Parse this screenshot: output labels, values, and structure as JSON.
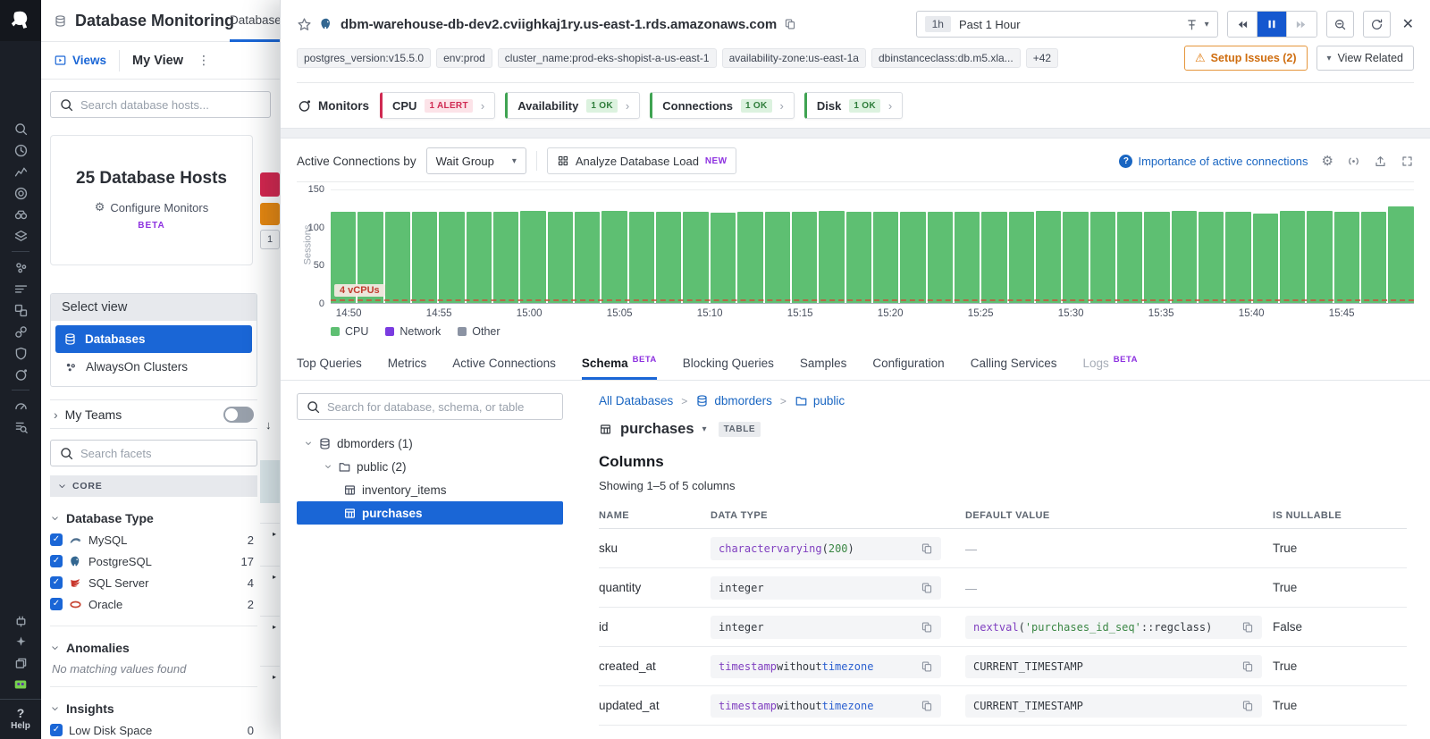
{
  "colors": {
    "accent_blue": "#1a66d6",
    "link_blue": "#1a66c2",
    "alert_red": "#cf2a52",
    "ok_green": "#2f7d3b",
    "warning_orange": "#cf6d0f",
    "bar_green": "#5ebf72",
    "network_purple": "#7a3be0",
    "other_gray": "#8b93a3",
    "beta_purple": "#8d31e0"
  },
  "icons": {
    "kebab": "⋮",
    "caret_down": "▾",
    "chevron_right": "›",
    "warning": "⚠",
    "close": "✕",
    "gear": "⚙",
    "sort_down": "↓",
    "check": "✓",
    "help": "?",
    "dash": "—"
  },
  "nav_rail": {
    "logo": "datadog-logo",
    "groups": [
      [
        "search",
        "events",
        "metrics",
        "monitors",
        "watchdog",
        "software-catalog"
      ],
      [
        "infrastructure",
        "log-pipelines",
        "dashboards",
        "apm-services",
        "security",
        "synthetics"
      ],
      [
        "performance",
        "log-explorer"
      ]
    ],
    "bottom": [
      "integrations",
      "bits-ai",
      "workspaces",
      "datadog-mascot"
    ],
    "help_label": "Help"
  },
  "underpage": {
    "app_title": "Database Monitoring",
    "nav_tab": "Databases",
    "views_label": "Views",
    "my_view_label": "My View",
    "search_placeholder": "Search database hosts...",
    "card": {
      "title": "25 Database Hosts",
      "configure_label": "Configure Monitors",
      "beta_label": "BETA"
    },
    "peek": {
      "page_number": "1"
    },
    "select_view": {
      "header": "Select view",
      "items": [
        {
          "label": "Databases",
          "icon": "database",
          "active": true
        },
        {
          "label": "AlwaysOn Clusters",
          "icon": "cluster",
          "active": false
        }
      ]
    },
    "my_teams_label": "My Teams",
    "facet_search_placeholder": "Search facets",
    "core_label": "CORE",
    "facets": [
      {
        "title": "Database Type",
        "items": [
          {
            "label": "MySQL",
            "icon": "mysql",
            "count": "2",
            "checked": true
          },
          {
            "label": "PostgreSQL",
            "icon": "postgresql",
            "count": "17",
            "checked": true
          },
          {
            "label": "SQL Server",
            "icon": "sqlserver",
            "count": "4",
            "checked": true
          },
          {
            "label": "Oracle",
            "icon": "oracle",
            "count": "2",
            "checked": true
          }
        ]
      },
      {
        "title": "Anomalies",
        "empty_text": "No matching values found",
        "items": []
      },
      {
        "title": "Insights",
        "items": [
          {
            "label": "Low Disk Space",
            "icon": null,
            "count": "0",
            "checked": true
          }
        ]
      }
    ]
  },
  "panel": {
    "host": "dbm-warehouse-db-dev2.cviighkaj1ry.us-east-1.rds.amazonaws.com",
    "time": {
      "range_short": "1h",
      "range_label": "Past 1 Hour"
    },
    "setup_issues_label": "Setup Issues (2)",
    "view_related_label": "View Related",
    "tags": [
      "postgres_version:v15.5.0",
      "env:prod",
      "cluster_name:prod-eks-shopist-a-us-east-1",
      "availability-zone:us-east-1a",
      "dbinstanceclass:db.m5.xla...",
      "+42"
    ],
    "monitors": {
      "label": "Monitors",
      "pills": [
        {
          "name": "CPU",
          "status": "1 ALERT",
          "state": "alert"
        },
        {
          "name": "Availability",
          "status": "1 OK",
          "state": "ok"
        },
        {
          "name": "Connections",
          "status": "1 OK",
          "state": "ok"
        },
        {
          "name": "Disk",
          "status": "1 OK",
          "state": "ok"
        }
      ]
    },
    "chart_controls": {
      "label": "Active Connections by",
      "selected": "Wait Group",
      "analyze_label": "Analyze Database Load",
      "new_badge": "NEW",
      "help_link": "Importance of active connections"
    },
    "tabs": [
      {
        "label": "Top Queries"
      },
      {
        "label": "Metrics"
      },
      {
        "label": "Active Connections"
      },
      {
        "label": "Schema",
        "beta": true,
        "active": true
      },
      {
        "label": "Blocking Queries"
      },
      {
        "label": "Samples"
      },
      {
        "label": "Configuration"
      },
      {
        "label": "Calling Services"
      },
      {
        "label": "Logs",
        "beta": true,
        "disabled": true
      }
    ],
    "schema": {
      "search_placeholder": "Search for database, schema, or table",
      "tree": [
        {
          "label": "dbmorders (1)",
          "icon": "database",
          "caret": true,
          "indent": 0
        },
        {
          "label": "public (2)",
          "icon": "folder",
          "caret": true,
          "indent": 1
        },
        {
          "label": "inventory_items",
          "icon": "table",
          "indent": 2
        },
        {
          "label": "purchases",
          "icon": "table",
          "indent": 2,
          "selected": true
        }
      ],
      "breadcrumb": [
        {
          "label": "All Databases"
        },
        {
          "label": "dbmorders",
          "icon": "database"
        },
        {
          "label": "public",
          "icon": "folder"
        }
      ],
      "entity": {
        "name": "purchases",
        "badge": "TABLE"
      },
      "section_title": "Columns",
      "showing": "Showing 1–5 of 5 columns",
      "table": {
        "headers": [
          "NAME",
          "DATA TYPE",
          "DEFAULT VALUE",
          "IS NULLABLE"
        ],
        "rows": [
          {
            "name": "sku",
            "data_type": "character varying(200)",
            "default": "—",
            "default_code": false,
            "nullable": "True"
          },
          {
            "name": "quantity",
            "data_type": "integer",
            "default": "—",
            "default_code": false,
            "nullable": "True"
          },
          {
            "name": "id",
            "data_type": "integer",
            "default": "nextval('purchases_id_seq'::regclass)",
            "default_code": true,
            "nullable": "False"
          },
          {
            "name": "created_at",
            "data_type": "timestamp without time zone",
            "default": "CURRENT_TIMESTAMP",
            "default_code": true,
            "nullable": "True"
          },
          {
            "name": "updated_at",
            "data_type": "timestamp without time zone",
            "default": "CURRENT_TIMESTAMP",
            "default_code": true,
            "nullable": "True"
          }
        ]
      }
    }
  },
  "chart_data": {
    "type": "bar",
    "stacked": true,
    "title": "Active Connections by Wait Group",
    "ylabel": "Sessions",
    "ylim": [
      0,
      150
    ],
    "yticks": [
      0,
      50,
      100,
      150
    ],
    "x_range": [
      "14:49",
      "15:49"
    ],
    "x_ticks": [
      "14:50",
      "14:55",
      "15:00",
      "15:05",
      "15:10",
      "15:15",
      "15:20",
      "15:25",
      "15:30",
      "15:35",
      "15:40",
      "15:45"
    ],
    "series": [
      {
        "name": "CPU",
        "color": "#5ebf72",
        "values": [
          120,
          121,
          120,
          120,
          121,
          120,
          121,
          122,
          121,
          120,
          122,
          120,
          121,
          120,
          119,
          121,
          120,
          121,
          122,
          121,
          120,
          120,
          121,
          120,
          121,
          121,
          122,
          121,
          120,
          121,
          120,
          122,
          121,
          121,
          118,
          122,
          122,
          120,
          120,
          127
        ]
      },
      {
        "name": "Network",
        "color": "#7a3be0",
        "values": [
          0,
          0,
          0,
          0,
          0,
          0,
          0,
          0,
          0,
          0,
          0,
          0,
          0,
          0,
          0,
          0,
          0,
          0,
          0,
          0,
          0,
          0,
          0,
          0,
          0,
          0,
          0,
          0,
          0,
          0,
          0,
          0,
          0,
          0,
          0,
          0,
          0,
          0,
          0,
          0
        ]
      },
      {
        "name": "Other",
        "color": "#8b93a3",
        "values": [
          0,
          0,
          0,
          0,
          0,
          0,
          0,
          0,
          0,
          0,
          0,
          0,
          0,
          0,
          0,
          0,
          0,
          0,
          0,
          0,
          0,
          0,
          0,
          0,
          0,
          0,
          0,
          0,
          0,
          0,
          0,
          0,
          0,
          0,
          0,
          0,
          0,
          0,
          0,
          0
        ]
      }
    ],
    "threshold": {
      "value": 4,
      "label": "4 vCPUs",
      "color": "#c13c2e",
      "style": "dashed"
    },
    "legend_position": "bottom-left",
    "grid": "minimal"
  }
}
